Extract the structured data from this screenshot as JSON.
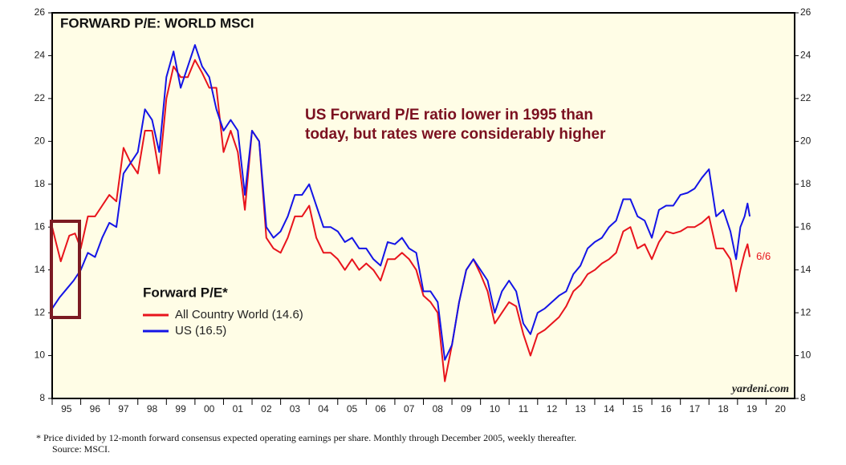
{
  "chart_data": {
    "type": "line",
    "title": "FORWARD P/E: WORLD MSCI",
    "annotation": [
      "US Forward P/E ratio lower in 1995 than",
      "today, but rates were considerably higher"
    ],
    "legend_title": "Forward P/E*",
    "end_label": "6/6",
    "source_mark": "yardeni.com",
    "footnote": [
      "*  Price divided by 12-month forward consensus expected operating earnings per share. Monthly through December 2005, weekly thereafter.",
      "Source: MSCI."
    ],
    "xlim": [
      1995,
      2021
    ],
    "xticks": [
      {
        "value": 1995.5,
        "label": "95"
      },
      {
        "value": 1996.5,
        "label": "96"
      },
      {
        "value": 1997.5,
        "label": "97"
      },
      {
        "value": 1998.5,
        "label": "98"
      },
      {
        "value": 1999.5,
        "label": "99"
      },
      {
        "value": 2000.5,
        "label": "00"
      },
      {
        "value": 2001.5,
        "label": "01"
      },
      {
        "value": 2002.5,
        "label": "02"
      },
      {
        "value": 2003.5,
        "label": "03"
      },
      {
        "value": 2004.5,
        "label": "04"
      },
      {
        "value": 2005.5,
        "label": "05"
      },
      {
        "value": 2006.5,
        "label": "06"
      },
      {
        "value": 2007.5,
        "label": "07"
      },
      {
        "value": 2008.5,
        "label": "08"
      },
      {
        "value": 2009.5,
        "label": "09"
      },
      {
        "value": 2010.5,
        "label": "10"
      },
      {
        "value": 2011.5,
        "label": "11"
      },
      {
        "value": 2012.5,
        "label": "12"
      },
      {
        "value": 2013.5,
        "label": "13"
      },
      {
        "value": 2014.5,
        "label": "14"
      },
      {
        "value": 2015.5,
        "label": "15"
      },
      {
        "value": 2016.5,
        "label": "16"
      },
      {
        "value": 2017.5,
        "label": "17"
      },
      {
        "value": 2018.5,
        "label": "18"
      },
      {
        "value": 2019.5,
        "label": "19"
      },
      {
        "value": 2020.5,
        "label": "20"
      }
    ],
    "ylim": [
      8,
      26
    ],
    "yticks": [
      8,
      10,
      12,
      14,
      16,
      18,
      20,
      22,
      24,
      26
    ],
    "right_axis": true,
    "series": [
      {
        "name": "All Country World (14.6)",
        "color": "#e8141c",
        "x": [
          1995.0,
          1995.15,
          1995.3,
          1995.45,
          1995.6,
          1995.8,
          1996.0,
          1996.25,
          1996.5,
          1996.75,
          1997.0,
          1997.25,
          1997.5,
          1997.75,
          1998.0,
          1998.25,
          1998.5,
          1998.75,
          1999.0,
          1999.25,
          1999.5,
          1999.75,
          2000.0,
          2000.25,
          2000.5,
          2000.75,
          2001.0,
          2001.25,
          2001.5,
          2001.75,
          2002.0,
          2002.25,
          2002.5,
          2002.75,
          2003.0,
          2003.25,
          2003.5,
          2003.75,
          2004.0,
          2004.25,
          2004.5,
          2004.75,
          2005.0,
          2005.25,
          2005.5,
          2005.75,
          2006.0,
          2006.25,
          2006.5,
          2006.75,
          2007.0,
          2007.25,
          2007.5,
          2007.75,
          2008.0,
          2008.25,
          2008.5,
          2008.75,
          2009.0,
          2009.25,
          2009.5,
          2009.75,
          2010.0,
          2010.25,
          2010.5,
          2010.75,
          2011.0,
          2011.25,
          2011.5,
          2011.75,
          2012.0,
          2012.25,
          2012.5,
          2012.75,
          2013.0,
          2013.25,
          2013.5,
          2013.75,
          2014.0,
          2014.25,
          2014.5,
          2014.75,
          2015.0,
          2015.25,
          2015.5,
          2015.75,
          2016.0,
          2016.25,
          2016.5,
          2016.75,
          2017.0,
          2017.25,
          2017.5,
          2017.75,
          2018.0,
          2018.25,
          2018.5,
          2018.75,
          2018.95,
          2019.1,
          2019.25,
          2019.35,
          2019.43
        ],
        "values": [
          16.0,
          15.2,
          14.4,
          15.0,
          15.6,
          15.7,
          15.0,
          16.5,
          16.5,
          17.0,
          17.5,
          17.2,
          19.7,
          19.0,
          18.5,
          20.5,
          20.5,
          18.5,
          22.0,
          23.5,
          23.0,
          23.0,
          23.8,
          23.2,
          22.5,
          22.5,
          19.5,
          20.5,
          19.5,
          16.8,
          20.5,
          20.0,
          15.5,
          15.0,
          14.8,
          15.5,
          16.5,
          16.5,
          17.0,
          15.5,
          14.8,
          14.8,
          14.5,
          14.0,
          14.5,
          14.0,
          14.3,
          14.0,
          13.5,
          14.5,
          14.5,
          14.8,
          14.5,
          14.0,
          12.8,
          12.5,
          12.0,
          8.8,
          10.5,
          12.5,
          14.0,
          14.5,
          13.8,
          13.0,
          11.5,
          12.0,
          12.5,
          12.3,
          11.0,
          10.0,
          11.0,
          11.2,
          11.5,
          11.8,
          12.3,
          13.0,
          13.3,
          13.8,
          14.0,
          14.3,
          14.5,
          14.8,
          15.8,
          16.0,
          15.0,
          15.2,
          14.5,
          15.3,
          15.8,
          15.7,
          15.8,
          16.0,
          16.0,
          16.2,
          16.5,
          15.0,
          15.0,
          14.5,
          13.0,
          14.0,
          14.8,
          15.2,
          14.6
        ]
      },
      {
        "name": "US (16.5)",
        "color": "#1414e6",
        "x": [
          1995.0,
          1995.25,
          1995.5,
          1995.75,
          1996.0,
          1996.25,
          1996.5,
          1996.75,
          1997.0,
          1997.25,
          1997.5,
          1997.75,
          1998.0,
          1998.25,
          1998.5,
          1998.75,
          1999.0,
          1999.25,
          1999.5,
          1999.75,
          2000.0,
          2000.25,
          2000.5,
          2000.75,
          2001.0,
          2001.25,
          2001.5,
          2001.75,
          2002.0,
          2002.25,
          2002.5,
          2002.75,
          2003.0,
          2003.25,
          2003.5,
          2003.75,
          2004.0,
          2004.25,
          2004.5,
          2004.75,
          2005.0,
          2005.25,
          2005.5,
          2005.75,
          2006.0,
          2006.25,
          2006.5,
          2006.75,
          2007.0,
          2007.25,
          2007.5,
          2007.75,
          2008.0,
          2008.25,
          2008.5,
          2008.75,
          2009.0,
          2009.25,
          2009.5,
          2009.75,
          2010.0,
          2010.25,
          2010.5,
          2010.75,
          2011.0,
          2011.25,
          2011.5,
          2011.75,
          2012.0,
          2012.25,
          2012.5,
          2012.75,
          2013.0,
          2013.25,
          2013.5,
          2013.75,
          2014.0,
          2014.25,
          2014.5,
          2014.75,
          2015.0,
          2015.25,
          2015.5,
          2015.75,
          2016.0,
          2016.25,
          2016.5,
          2016.75,
          2017.0,
          2017.25,
          2017.5,
          2017.75,
          2018.0,
          2018.25,
          2018.5,
          2018.75,
          2018.95,
          2019.1,
          2019.25,
          2019.35,
          2019.43
        ],
        "values": [
          12.2,
          12.7,
          13.1,
          13.5,
          14.0,
          14.8,
          14.6,
          15.5,
          16.2,
          16.0,
          18.5,
          19.0,
          19.5,
          21.5,
          21.0,
          19.5,
          23.0,
          24.2,
          22.5,
          23.5,
          24.5,
          23.5,
          23.0,
          21.5,
          20.5,
          21.0,
          20.5,
          17.5,
          20.5,
          20.0,
          16.0,
          15.5,
          15.8,
          16.5,
          17.5,
          17.5,
          18.0,
          17.0,
          16.0,
          16.0,
          15.8,
          15.3,
          15.5,
          15.0,
          15.0,
          14.5,
          14.2,
          15.3,
          15.2,
          15.5,
          15.0,
          14.8,
          13.0,
          13.0,
          12.5,
          9.8,
          10.5,
          12.5,
          14.0,
          14.5,
          14.0,
          13.5,
          12.0,
          13.0,
          13.5,
          13.0,
          11.5,
          11.0,
          12.0,
          12.2,
          12.5,
          12.8,
          13.0,
          13.8,
          14.2,
          15.0,
          15.3,
          15.5,
          16.0,
          16.3,
          17.3,
          17.3,
          16.5,
          16.3,
          15.5,
          16.8,
          17.0,
          17.0,
          17.5,
          17.6,
          17.8,
          18.3,
          18.7,
          16.5,
          16.8,
          15.8,
          14.5,
          16.0,
          16.5,
          17.1,
          16.5
        ]
      }
    ]
  }
}
